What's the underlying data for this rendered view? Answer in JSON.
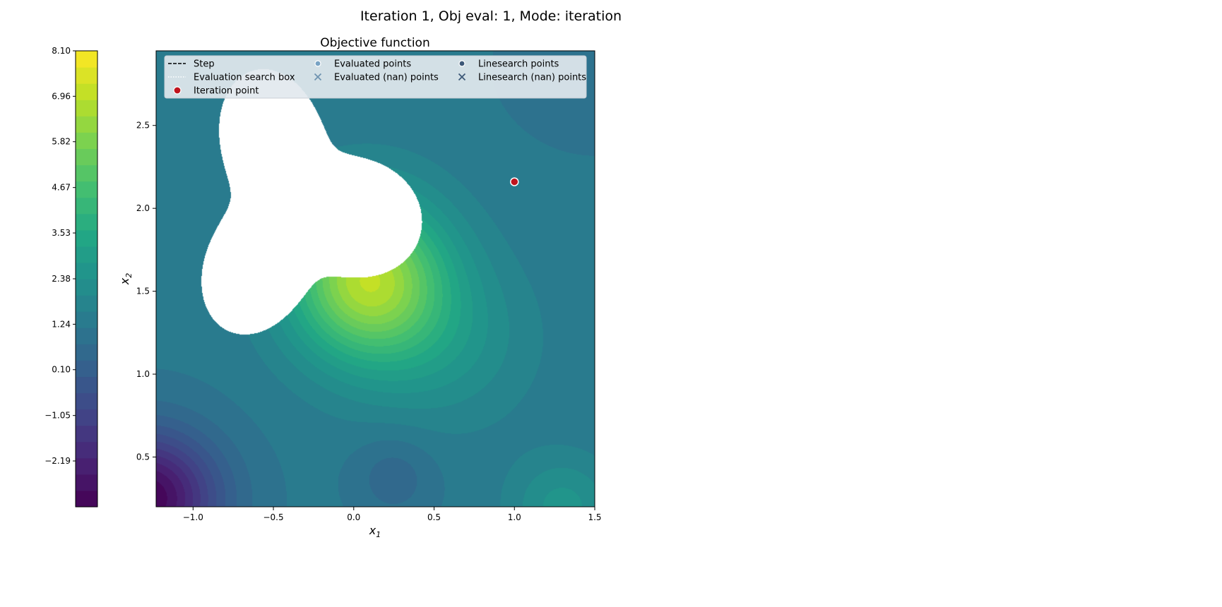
{
  "figure": {
    "suptitle": "Iteration 1, Obj eval: 1, Mode: iteration"
  },
  "chart_data": {
    "type": "contour",
    "title": "Objective function",
    "xlabel": "x1",
    "ylabel": "x2",
    "xlim": [
      -1.23,
      1.5
    ],
    "ylim": [
      0.2,
      2.95
    ],
    "xticks": [
      -1.0,
      -0.5,
      0.0,
      0.5,
      1.0,
      1.5
    ],
    "xtick_labels": [
      "−1.0",
      "−0.5",
      "0.0",
      "0.5",
      "1.0",
      "1.5"
    ],
    "yticks": [
      0.5,
      1.0,
      1.5,
      2.0,
      2.5
    ],
    "ytick_labels": [
      "0.5",
      "1.0",
      "1.5",
      "2.0",
      "2.5"
    ],
    "colorbar": {
      "vmin": -3.34,
      "vmax": 8.1,
      "ticks": [
        -2.19,
        -1.05,
        0.1,
        1.24,
        2.38,
        3.53,
        4.67,
        5.82,
        6.96,
        8.1
      ],
      "tick_labels": [
        "−2.19",
        "−1.05",
        "0.10",
        "1.24",
        "2.38",
        "3.53",
        "4.67",
        "5.82",
        "6.96",
        "8.10"
      ],
      "levels": 28,
      "colormap": "viridis"
    },
    "field": {
      "baseline": 1.25,
      "bumps": [
        {
          "x0": 0.08,
          "y0": 1.58,
          "sx": 0.48,
          "sy": 0.48,
          "amp": 5.4
        },
        {
          "x0": 0.55,
          "y0": 1.2,
          "sx": 0.55,
          "sy": 0.5,
          "amp": 1.1
        },
        {
          "x0": -1.3,
          "y0": 0.25,
          "sx": 0.45,
          "sy": 0.4,
          "amp": -4.6
        },
        {
          "x0": 1.3,
          "y0": 0.2,
          "sx": 0.32,
          "sy": 0.3,
          "amp": 1.3
        },
        {
          "x0": 0.25,
          "y0": 0.38,
          "sx": 0.25,
          "sy": 0.25,
          "amp": -0.8
        },
        {
          "x0": 1.5,
          "y0": 2.85,
          "sx": 0.6,
          "sy": 0.5,
          "amp": -0.3
        }
      ],
      "nan_region": {
        "cx": -0.36,
        "cy": 2.0,
        "r0": 0.6,
        "r_mod": 0.19,
        "lobes": 3,
        "phase": 0.4,
        "sx": 1.0,
        "sy": 1.12
      }
    },
    "series": [
      {
        "name": "Iteration point",
        "x": [
          1.0
        ],
        "y": [
          2.16
        ],
        "color": "#c0141e"
      }
    ],
    "legend": {
      "placement": "top",
      "columns": [
        [
          {
            "label": "Step",
            "marker": "dashed-line",
            "color": "#000000"
          },
          {
            "label": "Evaluation search box",
            "marker": "dotted-line",
            "color": "#ffffff"
          },
          {
            "label": "Iteration point",
            "marker": "circle",
            "color": "#c0141e"
          }
        ],
        [
          {
            "label": "Evaluated points",
            "marker": "circle",
            "color": "#78a3c4"
          },
          {
            "label": "Evaluated (nan) points",
            "marker": "x",
            "color": "#6e93b0"
          }
        ],
        [
          {
            "label": "Linesearch points",
            "marker": "circle",
            "color": "#3d5878"
          },
          {
            "label": "Linesearch (nan) points",
            "marker": "x",
            "color": "#3d5878"
          }
        ]
      ]
    }
  }
}
